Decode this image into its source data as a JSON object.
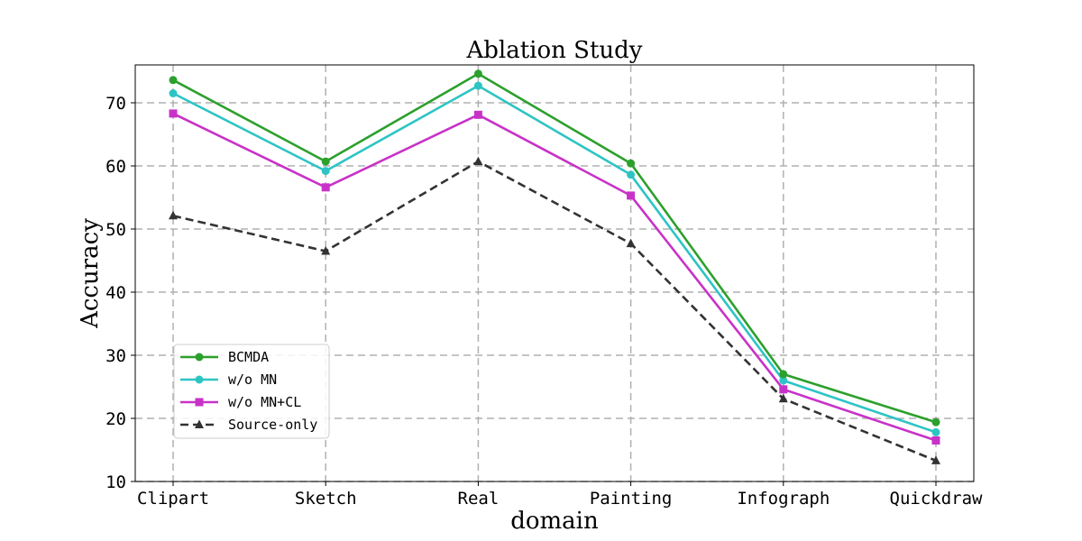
{
  "chart_data": {
    "type": "line",
    "title": "Ablation Study",
    "xlabel": "domain",
    "ylabel": "Accuracy",
    "categories": [
      "Clipart",
      "Sketch",
      "Real",
      "Painting",
      "Infograph",
      "Quickdraw"
    ],
    "ylim": [
      10,
      76
    ],
    "yticks": [
      10,
      20,
      30,
      40,
      50,
      60,
      70
    ],
    "grid": true,
    "legend_position": "lower-left",
    "series": [
      {
        "name": "BCMDA",
        "color": "#2ca02c",
        "marker": "circle",
        "dashed": false,
        "values": [
          73.6,
          60.7,
          74.6,
          60.4,
          27.0,
          19.4
        ]
      },
      {
        "name": "w/o MN",
        "color": "#2ec4c4",
        "marker": "circle",
        "dashed": false,
        "values": [
          71.5,
          59.2,
          72.7,
          58.6,
          26.0,
          17.8
        ]
      },
      {
        "name": "w/o MN+CL",
        "color": "#c832c8",
        "marker": "square",
        "dashed": false,
        "values": [
          68.3,
          56.6,
          68.1,
          55.3,
          24.6,
          16.5
        ]
      },
      {
        "name": "Source-only",
        "color": "#333333",
        "marker": "triangle",
        "dashed": true,
        "values": [
          52.1,
          46.5,
          60.7,
          47.7,
          23.1,
          13.3
        ]
      }
    ]
  }
}
